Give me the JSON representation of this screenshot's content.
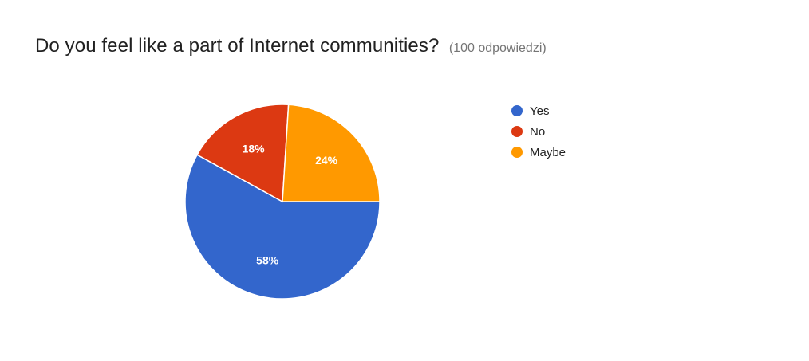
{
  "header": {
    "title": "Do you feel like a part of Internet communities?",
    "response_count": "(100 odpowiedzi)"
  },
  "chart_data": {
    "type": "pie",
    "categories": [
      "Yes",
      "No",
      "Maybe"
    ],
    "values": [
      58,
      18,
      24
    ],
    "labels": [
      "58%",
      "18%",
      "24%"
    ],
    "colors": [
      "#3366cc",
      "#dc3912",
      "#ff9900"
    ],
    "legend_position": "right"
  }
}
